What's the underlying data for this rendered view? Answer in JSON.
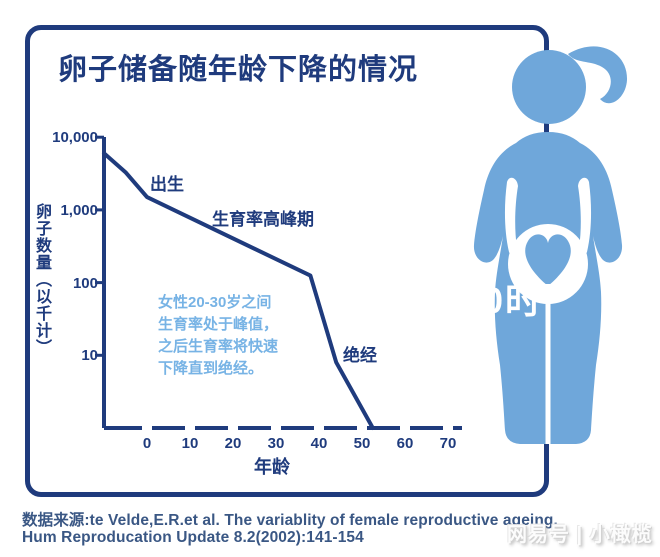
{
  "title": "卵子储备随年龄下降的情况",
  "chart_data": {
    "type": "line",
    "title": "卵子储备随年龄下降的情况",
    "xlabel": "年龄",
    "ylabel": "卵子数量（以千计）",
    "x_ticks": [
      0,
      10,
      20,
      30,
      40,
      50,
      60,
      70
    ],
    "y_ticks": [
      "10,000",
      "1,000",
      "100",
      "10"
    ],
    "y_scale": "log",
    "xlim": [
      -10,
      70
    ],
    "ylim": [
      1,
      10000
    ],
    "grid": false,
    "points": [
      {
        "age": -10,
        "eggs_thousands": 6000
      },
      {
        "age": -5,
        "eggs_thousands": 3300
      },
      {
        "age": 0,
        "eggs_thousands": 1500
      },
      {
        "age": 38,
        "eggs_thousands": 125
      },
      {
        "age": 44,
        "eggs_thousands": 8
      },
      {
        "age": 52.5,
        "eggs_thousands": 1
      }
    ],
    "annotations": [
      {
        "label": "出生",
        "age": 0
      },
      {
        "label": "生育率高峰期",
        "age": 18
      },
      {
        "label": "绝经",
        "age": 47
      }
    ],
    "note": "女性20-30岁之间\n生育率处于峰值，\n之后生育率将快速\n下降直到绝经。"
  },
  "source": {
    "line1": "数据来源:te Velde,E.R.et al. The variablity of female reproductive ageing.",
    "line2": "Hum Reproducation Update 8.2(2002):141-154"
  },
  "watermarks": {
    "fragment": "0时",
    "publisher": "网易号 | 小橄榄"
  },
  "illustration": "pregnant-woman-with-heart-in-belly",
  "colors": {
    "navy": "#1f3b7d",
    "figure_blue": "#6fa7da",
    "note_blue": "#77b3e5",
    "source_text": "#3a5784",
    "background": "#ffffff"
  }
}
